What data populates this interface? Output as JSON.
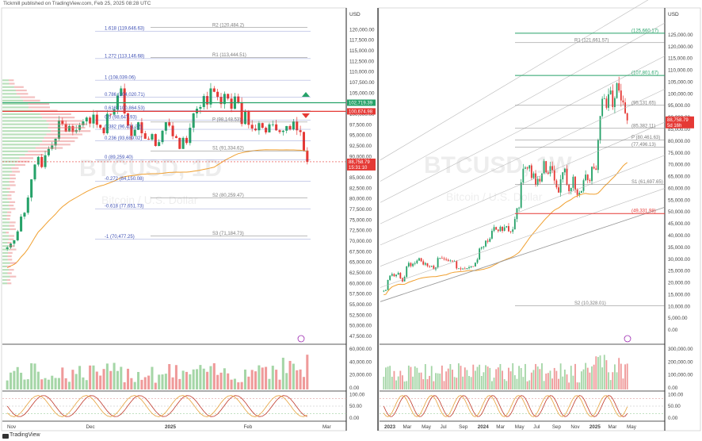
{
  "header": {
    "text": "Tickmill published on TradingView.com, Feb 25, 2025 08:28 UTC"
  },
  "footer": {
    "brand": "TradingView"
  },
  "colors": {
    "up": "#26a269",
    "down": "#e53935",
    "volume_up": "#a5d6a7",
    "volume_down": "#ef9a9a",
    "ma": "#f0a030",
    "fib": "#3f51b5",
    "pivot": "#7a7a7a"
  },
  "chart_data": [
    {
      "type": "candlestick",
      "watermark": "BTCUSD, 1D",
      "watermark_sub": "Bitcoin / U.S. Dollar",
      "currency": "USD",
      "ylim": [
        46000,
        124000
      ],
      "y_ticks": [
        120000,
        117500,
        115000,
        112500,
        110000,
        107500,
        105000,
        102500,
        100000,
        97500,
        95000,
        92500,
        90000,
        87500,
        85000,
        82500,
        80000,
        77500,
        75000,
        72500,
        70000,
        67500,
        65000,
        62500,
        60000,
        57500,
        55000,
        52500,
        50000,
        47500
      ],
      "y_tick_labels": [
        "120,000.00",
        "117,500.00",
        "115,000.00",
        "112,500.00",
        "110,000.00",
        "107,500.00",
        "105,000.00",
        "102,500.00",
        "100,000.00",
        "97,500.00",
        "95,000.00",
        "92,500.00",
        "90,000.00",
        "87,500.00",
        "85,000.00",
        "82,500.00",
        "80,000.00",
        "77,500.00",
        "75,000.00",
        "72,500.00",
        "70,000.00",
        "67,500.00",
        "65,000.00",
        "62,500.00",
        "60,000.00",
        "57,500.00",
        "55,000.00",
        "52,500.00",
        "50,000.00",
        "47,500.00"
      ],
      "x_labels": [
        "Nov",
        "Dec",
        "2025",
        "Feb",
        "Mar"
      ],
      "price_badges": [
        {
          "value": 102719.39,
          "label": "102,719.39",
          "color": "#26a269"
        },
        {
          "value": 100674.98,
          "label": "100,674.98",
          "color": "#e53935"
        },
        {
          "value": 88758.79,
          "label": "88,758.79",
          "sub": "15:31:10",
          "color": "#e53935"
        }
      ],
      "fib_levels": [
        {
          "label": "1.618 (119,646.63)",
          "value": 119646.63
        },
        {
          "label": "1.272 (113,146.68)",
          "value": 113146.68
        },
        {
          "label": "1 (108,039.06)",
          "value": 108039.06
        },
        {
          "label": "0.786 (104,020.71)",
          "value": 104020.71
        },
        {
          "label": "0.618 (100,864.53)",
          "value": 100864.53
        },
        {
          "label": "0.5 (98,647.93)",
          "value": 98647.93
        },
        {
          "label": "0.382 (96,431.32)",
          "value": 96431.32
        },
        {
          "label": "0.236 (93,689.02)",
          "value": 93689.02
        },
        {
          "label": "0 (89,259.40)",
          "value": 89259.4
        },
        {
          "label": "-0.272 (84,150.08)",
          "value": 84150.08
        },
        {
          "label": "-0.618 (77,651.73)",
          "value": 77651.73
        },
        {
          "label": "-1 (70,477.25)",
          "value": 70477.25
        }
      ],
      "pivot_levels": [
        {
          "label": "R2 (120,484.2)",
          "value": 120484.2
        },
        {
          "label": "R1 (113,444.51)",
          "value": 113444.51
        },
        {
          "label": "P (98,148.53)",
          "value": 98148.53
        },
        {
          "label": "S1 (91,334.62)",
          "value": 91334.62
        },
        {
          "label": "S2 (80,259.47)",
          "value": 80259.47
        },
        {
          "label": "S3 (71,184.73)",
          "value": 71184.73
        }
      ],
      "close_series": [
        68500,
        69400,
        70200,
        72300,
        75800,
        76700,
        80300,
        84600,
        88100,
        89900,
        87500,
        90300,
        91800,
        92600,
        94200,
        98500,
        97700,
        95900,
        97200,
        95800,
        96300,
        97400,
        98300,
        99200,
        97800,
        99900,
        97500,
        96800,
        95500,
        100100,
        99900,
        101100,
        104400,
        106100,
        100200,
        97300,
        94900,
        96300,
        98100,
        95500,
        94200,
        94000,
        95300,
        92500,
        93400,
        96100,
        98100,
        97300,
        94800,
        94400,
        91800,
        94400,
        93200,
        96800,
        100200,
        101300,
        101700,
        104300,
        102300,
        106100,
        105300,
        104100,
        102400,
        104800,
        103700,
        101300,
        104200,
        102800,
        97700,
        100700,
        97500,
        96600,
        96200,
        97900,
        96800,
        95700,
        97600,
        97600,
        96200,
        95800,
        96100,
        97200,
        96400,
        98300,
        96200,
        95800,
        91400,
        88758
      ]
    },
    {
      "type": "candlestick",
      "watermark": "BTCUSD, 1W",
      "watermark_sub": "Bitcoin / U.S. Dollar",
      "currency": "USD",
      "ylim": [
        -4000,
        131000
      ],
      "y_ticks": [
        125000,
        120000,
        115000,
        110000,
        105000,
        100000,
        95000,
        90000,
        85000,
        80000,
        75000,
        70000,
        65000,
        60000,
        55000,
        50000,
        45000,
        40000,
        35000,
        30000,
        25000,
        20000,
        15000,
        10000,
        5000,
        0
      ],
      "y_tick_labels": [
        "125,000.00",
        "120,000.00",
        "115,000.00",
        "110,000.00",
        "105,000.00",
        "100,000.00",
        "95,000.00",
        "90,000.00",
        "85,000.00",
        "80,000.00",
        "75,000.00",
        "70,000.00",
        "65,000.00",
        "60,000.00",
        "55,000.00",
        "50,000.00",
        "45,000.00",
        "40,000.00",
        "35,000.00",
        "30,000.00",
        "25,000.00",
        "20,000.00",
        "15,000.00",
        "10,000.00",
        "5,000.00",
        "0.00"
      ],
      "x_labels": [
        "2023",
        "Mar",
        "May",
        "Jul",
        "Sep",
        "2024",
        "Mar",
        "May",
        "Jul",
        "Sep",
        "Nov",
        "2025",
        "Mar",
        "May"
      ],
      "price_badges": [
        {
          "value": 88758.79,
          "label": "88,758.79",
          "sub": "5d 16h",
          "color": "#e53935"
        }
      ],
      "levels": [
        {
          "label": "(125,660.17)",
          "value": 125660.17
        },
        {
          "label": "R1 (121,661.57)",
          "value": 121661.57
        },
        {
          "label": "(107,801.67)",
          "value": 107801.67
        },
        {
          "label": "(95,131.65)",
          "value": 95131.65
        },
        {
          "label": "(85,382.11)",
          "value": 85382.11
        },
        {
          "label": "P (80,461.63)",
          "value": 80461.63
        },
        {
          "label": "(77,496.13)",
          "value": 77496.13
        },
        {
          "label": "S1 (61,697.65)",
          "value": 61697.65
        },
        {
          "label": "(49,331.98)",
          "value": 49331.98
        },
        {
          "label": "S2 (10,328.01)",
          "value": 10328.01
        }
      ],
      "close_series": [
        16600,
        17000,
        21200,
        23000,
        23700,
        22800,
        23400,
        24200,
        21900,
        20600,
        22500,
        26900,
        28400,
        27100,
        28000,
        28300,
        29400,
        30400,
        29100,
        27700,
        28300,
        27100,
        26900,
        27200,
        25700,
        26500,
        30500,
        30500,
        30300,
        30000,
        29700,
        29300,
        29400,
        29100,
        29200,
        26100,
        26100,
        25800,
        26000,
        25900,
        26200,
        26600,
        27000,
        26900,
        28500,
        29900,
        34500,
        35000,
        35400,
        37800,
        37400,
        38700,
        42000,
        43600,
        42500,
        41900,
        43700,
        42000,
        43500,
        44000,
        41800,
        41600,
        42600,
        47000,
        51600,
        51800,
        62500,
        68300,
        68800,
        68400,
        69700,
        64400,
        66300,
        61500,
        64000,
        62900,
        66300,
        71500,
        66800,
        66200,
        69400,
        67700,
        63300,
        60400,
        58200,
        63800,
        66800,
        68300,
        61500,
        58800,
        60200,
        64900,
        59500,
        57200,
        58100,
        58900,
        63400,
        65800,
        63500,
        63100,
        69100,
        68400,
        67800,
        80400,
        90600,
        97900,
        98000,
        94100,
        99800,
        101400,
        94400,
        98200,
        104500,
        101400,
        97200,
        96400,
        91800,
        88758
      ]
    }
  ]
}
